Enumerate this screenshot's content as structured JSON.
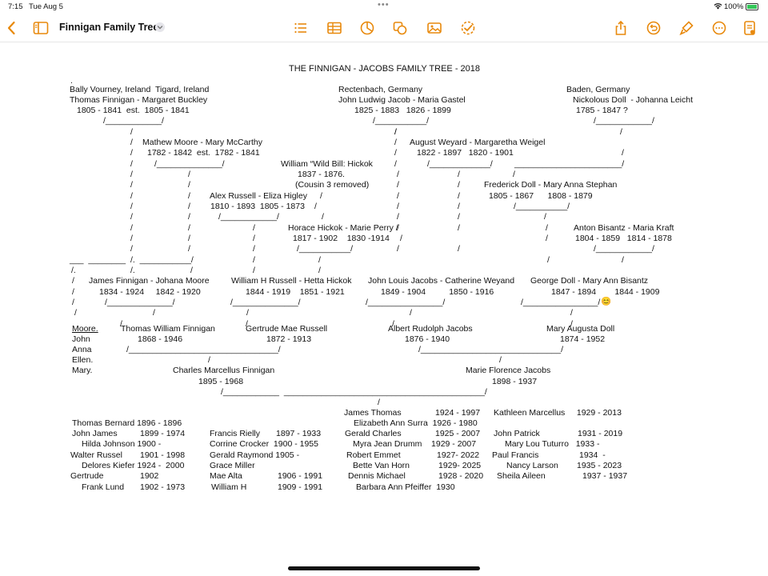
{
  "status_bar": {
    "time": "7:15",
    "date": "Tue Aug 5",
    "battery": "100%"
  },
  "toolbar": {
    "doc_title": "Finnigan Family Tree"
  },
  "colors": {
    "accent": "#e8890c"
  },
  "document": {
    "title": "THE FINNIGAN - JACOBS FAMILY TREE - 2018",
    "lines": [
      ".",
      "Bally Vourney, Ireland  Tigard, Ireland",
      "Thomas Finnigan - Margaret Buckley",
      "1805 - 1841  est.  1805 - 1841",
      "/____________/",
      "/",
      "/",
      "Mathew Moore - Mary McCarthy",
      "/",
      "1782 - 1842  est.  1782 - 1841",
      "/",
      "/______________/",
      "/",
      "/",
      "/",
      "/",
      "/",
      "/",
      "/",
      "/",
      "/",
      "/",
      "/",
      "/",
      "/",
      "/",
      "/",
      "/",
      "___  ________",
      "/.  ___________/",
      "/.",
      "/.",
      "/",
      "/",
      "/",
      "/",
      "/",
      "Rectenbach, Germany",
      "John Ludwig Jacob - Maria Gastel",
      "1825 - 1883   1826 - 1899",
      "/___________/",
      "/",
      "/",
      "August Weyard - Margaretha Weigel",
      "/",
      "1822 - 1897   1820 - 1901",
      "/",
      "/_____________/",
      "/",
      "/",
      "/",
      "/",
      "/",
      "/",
      "/",
      "/",
      "/",
      "/",
      "/",
      "/",
      "/",
      "/",
      "Baden, Germany",
      "Nickolous Doll  - Johanna Leicht",
      "1785 - 1847 ?",
      "/____________/",
      "/",
      "/",
      "_______________________/",
      "/",
      "Frederick Doll - Mary Anna Stephan",
      "1805 - 1867      1808 - 1879",
      "/___________/",
      "/",
      "Anton Bisantz - Maria Kraft",
      "/",
      "1804 - 1859   1814 - 1878",
      "/",
      "/____________/",
      "/",
      "/",
      "William “Wild Bill: Hickok",
      "1837 - 1876.",
      "(Cousin 3 removed)",
      "Alex Russell - Eliza Higley",
      "/",
      "1810 - 1893  1805 - 1873",
      "/",
      "/____________/",
      "/",
      "/",
      "Horace Hickok - Marie Perry /",
      "/",
      "1817 - 1902    1830 -1914",
      "/",
      "/",
      "/___________/",
      "/",
      "/",
      "/",
      "/",
      "James Finnigan - Johana Moore",
      "1834 - 1924     1842 - 1920",
      "/______________/",
      "William H Russell - Hetta Hickok",
      "1844 - 1919    1851 - 1921",
      "/______________/",
      "John Louis Jacobs - Catherine Weyand",
      "1849 - 1904          1850 - 1916",
      "/________________/",
      "George Doll - Mary Ann Bisantz",
      "1847 - 1894        1844 - 1909",
      "/________________/",
      "😊",
      "/",
      "/",
      "/",
      "/",
      "/",
      "/",
      "/",
      "/",
      "/",
      "Moore.",
      "John",
      "Anna",
      "Ellen.",
      "Mary.",
      "Thomas William Finnigan",
      "1868 - 1946",
      "/________________________________/",
      "Gertrude Mae Russell",
      "1872 - 1913",
      "Albert Rudolph Jacobs",
      "1876 - 1940",
      "/______________________________/",
      "Mary Augusta Doll",
      "1874 - 1952",
      "/",
      "/",
      "Charles Marcellus Finnigan",
      "1895 - 1968",
      "/____________  ___________________________________________/",
      "Marie Florence Jacobs",
      "1898 - 1937",
      "/",
      "James Thomas",
      "1924 - 1997",
      "Kathleen Marcellus     1929 - 2013",
      "Elizabeth Ann Surra  1926 - 1980",
      "Thomas Bernard 1896 - 1896",
      "John James",
      "1899 - 1974",
      "Hilda Johnson 1900 -",
      "Walter Russel",
      "1901 - 1998",
      "Delores Kiefer 1924 -  2000",
      "Gertrude",
      "1902",
      "Frank Lund",
      "1902 - 1973",
      "Francis Rielly",
      "1897 - 1933",
      "Corrine Crocker  1900 - 1955",
      "Gerald Raymond 1905 -",
      "Grace Miller",
      "Mae Alta",
      "1906 - 1991",
      "William H",
      "1909 - 1991",
      "Gerald Charles",
      "1925 - 2007",
      "Myra Jean Drumm    1929 - 2007",
      "Robert Emmet",
      "1927- 2022",
      "Bette Van Horn",
      "1929- 2025",
      "Dennis Michael",
      "1928 - 2020",
      "Barbara Ann Pfeiffer  1930",
      "John Patrick",
      "1931 - 2019",
      "Mary Lou Tuturro   1933 -",
      "Paul Francis",
      "1934  -",
      "Nancy Larson",
      "1935 - 2023",
      "Sheila Aileen",
      "1937 - 1937"
    ]
  }
}
